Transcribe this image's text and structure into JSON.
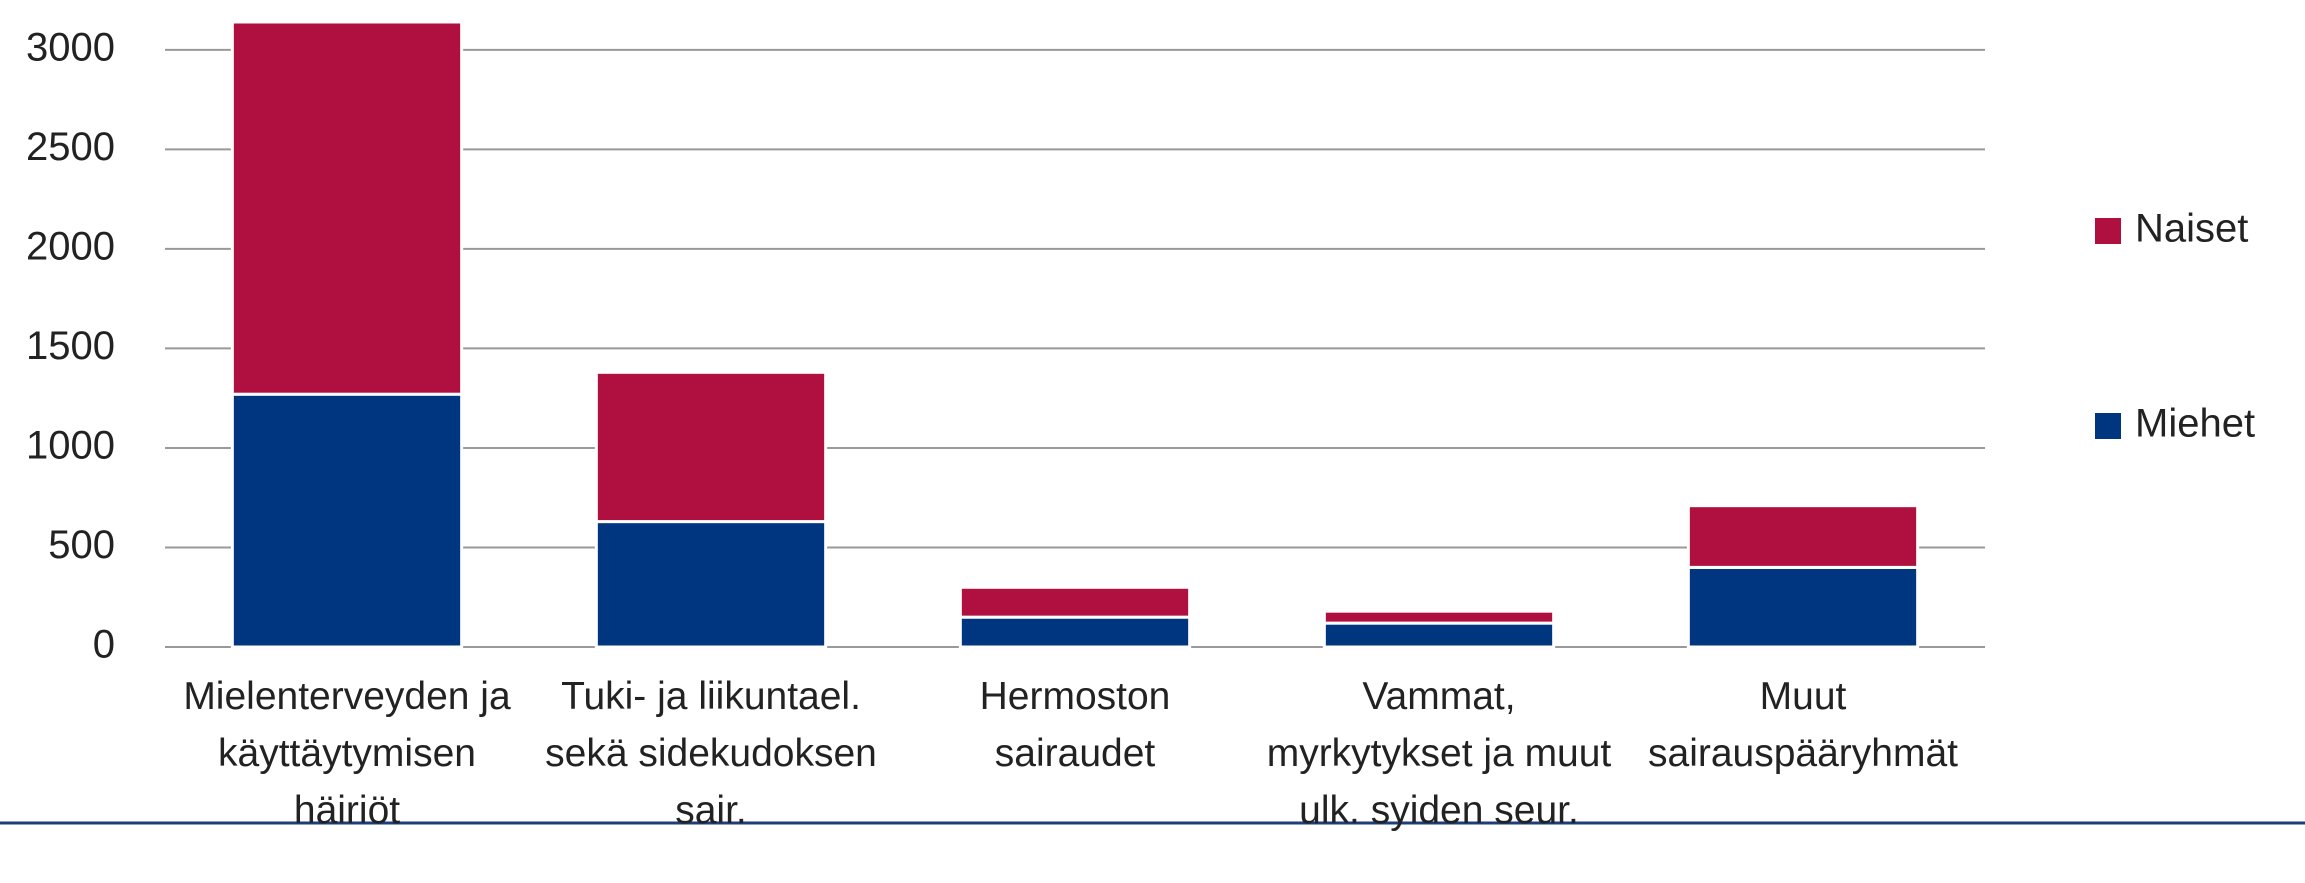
{
  "chart_data": {
    "type": "bar",
    "stacked": true,
    "categories": [
      "Mielenterveyden ja käyttäytymisen häiriöt",
      "Tuki- ja liikuntael. sekä sidekudoksen sair.",
      "Hermoston sairaudet",
      "Vammat, myrkytykset ja muut ulk. syiden seur.",
      "Muut sairauspääryhmät"
    ],
    "series": [
      {
        "name": "Miehet",
        "color": "#003580",
        "values": [
          1270,
          630,
          150,
          120,
          400
        ]
      },
      {
        "name": "Naiset",
        "color": "#b01040",
        "values": [
          1870,
          750,
          150,
          60,
          310
        ]
      }
    ],
    "ylim": [
      0,
      3150
    ],
    "yticks": [
      0,
      500,
      1000,
      1500,
      2000,
      2500,
      3000
    ],
    "grid": true,
    "legend": "right"
  }
}
